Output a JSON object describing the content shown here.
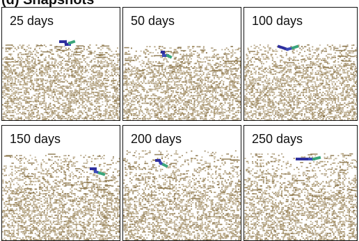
{
  "figure": {
    "header_text": "(d) Snapshots",
    "colors": {
      "grain": "#a08a5e",
      "grain_dark": "#8a7348",
      "crack_dark": "#2e2f9e",
      "crack_mid": "#3c4ab8",
      "crack_tip": "#3aa57a",
      "frame": "#111111"
    },
    "panels": [
      {
        "label": "25 days",
        "icon": "crack-snapshot"
      },
      {
        "label": "50 days",
        "icon": "crack-snapshot"
      },
      {
        "label": "100 days",
        "icon": "crack-snapshot"
      },
      {
        "label": "150 days",
        "icon": "crack-snapshot"
      },
      {
        "label": "200 days",
        "icon": "crack-snapshot"
      },
      {
        "label": "250 days",
        "icon": "crack-snapshot"
      }
    ]
  }
}
